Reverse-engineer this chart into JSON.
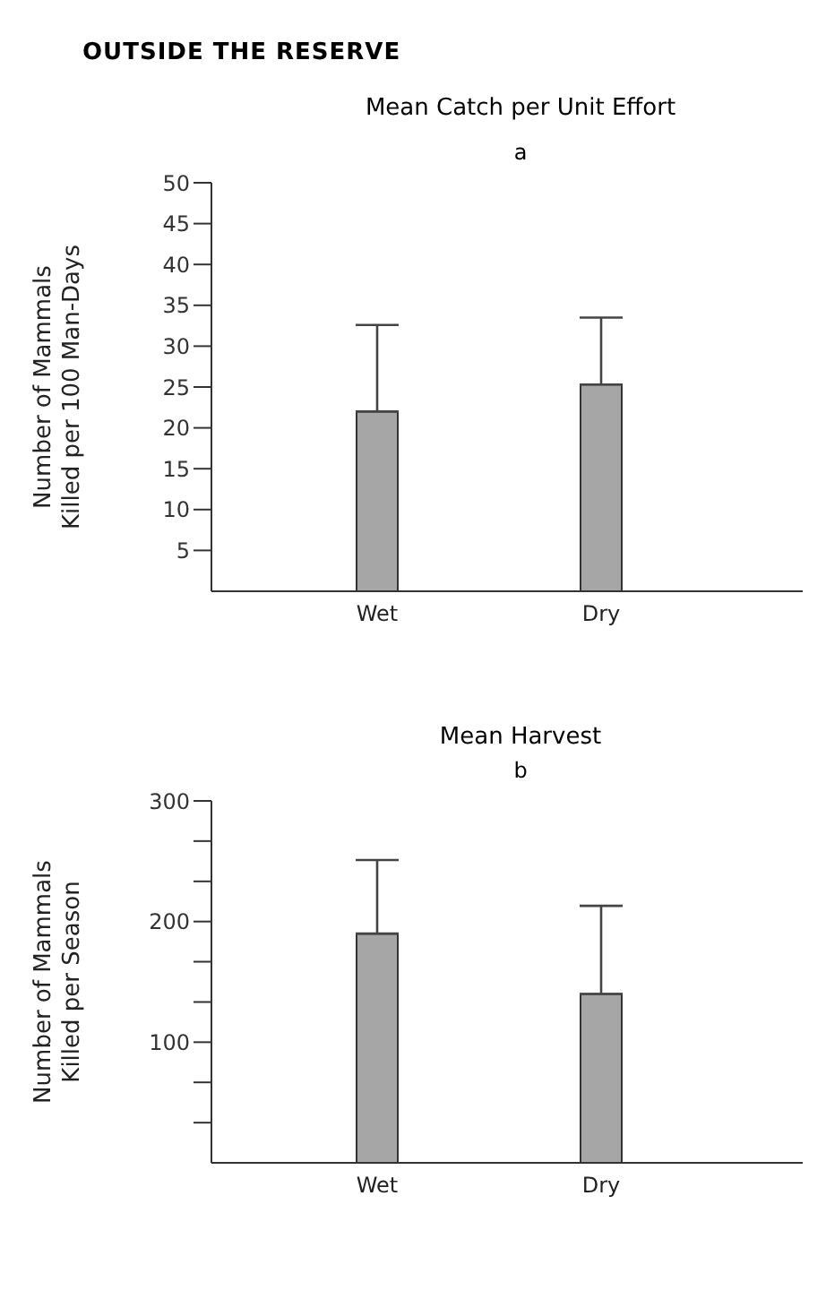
{
  "chart_data": [
    {
      "type": "bar",
      "title": "OUTSIDE THE RESERVE",
      "subtitle": "Mean Catch per Unit Effort",
      "annotations": [
        "a"
      ],
      "ylabel": "Number of Mammals\nKilled per 100 Man-Days",
      "categories": [
        "Wet",
        "Dry"
      ],
      "values": [
        22,
        25.3
      ],
      "errors": [
        [
          22,
          32.6
        ],
        [
          25.3,
          33.5
        ]
      ],
      "color": "#a6a6a6",
      "ylim": [
        0,
        50
      ],
      "yticks": [
        5,
        10,
        15,
        20,
        25,
        30,
        35,
        40,
        45,
        50
      ],
      "grid": false,
      "legend": false
    },
    {
      "type": "bar",
      "title": "Mean Harvest",
      "annotations": [
        "b"
      ],
      "ylabel": "Number of Mammals\nKilled per Season",
      "categories": [
        "Wet",
        "Dry"
      ],
      "values": [
        190,
        140
      ],
      "errors": [
        [
          190,
          251
        ],
        [
          140,
          213
        ]
      ],
      "color": "#a6a6a6",
      "ylim": [
        0,
        300
      ],
      "yticks": [
        {
          "value": 33.3,
          "label": null
        },
        {
          "value": 66.7,
          "label": null
        },
        100,
        {
          "value": 133.3,
          "label": null
        },
        {
          "value": 166.7,
          "label": null
        },
        200,
        {
          "value": 233.3,
          "label": null
        },
        {
          "value": 266.7,
          "label": null
        },
        300
      ],
      "grid": false,
      "legend": false
    }
  ]
}
